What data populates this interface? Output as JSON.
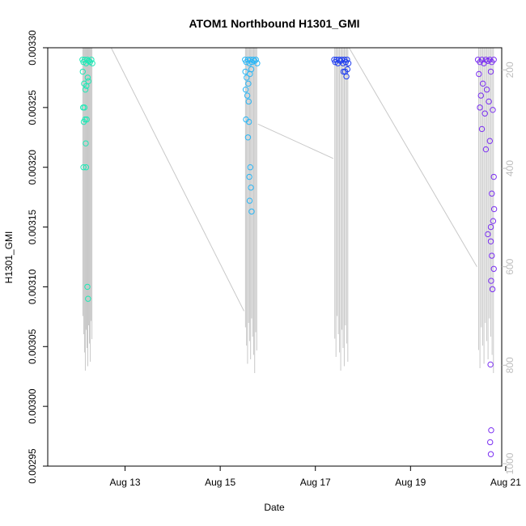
{
  "chart_data": {
    "type": "scatter",
    "title": "ATOM1 Northbound H1301_GMI",
    "xlabel": "Date",
    "ylabel": "H1301_GMI",
    "xlim": [
      "2023-08-11T09:00",
      "2023-08-20T22:00"
    ],
    "ylim": [
      0.00295,
      0.0033
    ],
    "y2lim": [
      1005,
      155
    ],
    "grid": false,
    "x_ticks": [
      {
        "value": "2023-08-13T00:00",
        "label": "Aug 13"
      },
      {
        "value": "2023-08-15T00:00",
        "label": "Aug 15"
      },
      {
        "value": "2023-08-17T00:00",
        "label": "Aug 17"
      },
      {
        "value": "2023-08-19T00:00",
        "label": "Aug 19"
      },
      {
        "value": "2023-08-21T00:00",
        "label": "Aug 21"
      }
    ],
    "y_ticks": [
      "0.00295",
      "0.00300",
      "0.00305",
      "0.00310",
      "0.00315",
      "0.00320",
      "0.00325",
      "0.00330"
    ],
    "y2_ticks": [
      "200",
      "400",
      "600",
      "800",
      "1000"
    ],
    "series": [
      {
        "color": "#1de9b6",
        "points": [
          [
            "2023-08-12T02:30",
            0.00329
          ],
          [
            "2023-08-12T03:00",
            0.003288
          ],
          [
            "2023-08-12T03:40",
            0.00329
          ],
          [
            "2023-08-12T04:20",
            0.003287
          ],
          [
            "2023-08-12T05:00",
            0.00329
          ],
          [
            "2023-08-12T05:40",
            0.003289
          ],
          [
            "2023-08-12T06:20",
            0.003288
          ],
          [
            "2023-08-12T07:00",
            0.00329
          ],
          [
            "2023-08-12T07:30",
            0.003287
          ],
          [
            "2023-08-12T02:40",
            0.00328
          ],
          [
            "2023-08-12T03:20",
            0.00327
          ],
          [
            "2023-08-12T04:00",
            0.003265
          ],
          [
            "2023-08-12T04:30",
            0.003268
          ],
          [
            "2023-08-12T05:10",
            0.003275
          ],
          [
            "2023-08-12T05:30",
            0.003272
          ],
          [
            "2023-08-12T02:50",
            0.00325
          ],
          [
            "2023-08-12T03:30",
            0.00325
          ],
          [
            "2023-08-12T03:50",
            0.00324
          ],
          [
            "2023-08-12T04:40",
            0.00324
          ],
          [
            "2023-08-12T03:10",
            0.003238
          ],
          [
            "2023-08-12T04:10",
            0.00322
          ],
          [
            "2023-08-12T03:00",
            0.0032
          ],
          [
            "2023-08-12T04:20",
            0.0032
          ],
          [
            "2023-08-12T05:00",
            0.0031
          ],
          [
            "2023-08-12T05:20",
            0.00309
          ]
        ]
      },
      {
        "color": "#29b6f6",
        "points": [
          [
            "2023-08-15T12:30",
            0.00329
          ],
          [
            "2023-08-15T13:10",
            0.003288
          ],
          [
            "2023-08-15T14:00",
            0.00329
          ],
          [
            "2023-08-15T14:40",
            0.003287
          ],
          [
            "2023-08-15T15:20",
            0.00329
          ],
          [
            "2023-08-15T16:00",
            0.003288
          ],
          [
            "2023-08-15T16:40",
            0.00329
          ],
          [
            "2023-08-15T17:20",
            0.003289
          ],
          [
            "2023-08-15T18:00",
            0.00329
          ],
          [
            "2023-08-15T18:40",
            0.003287
          ],
          [
            "2023-08-15T12:40",
            0.00328
          ],
          [
            "2023-08-15T13:20",
            0.003275
          ],
          [
            "2023-08-15T14:10",
            0.00327
          ],
          [
            "2023-08-15T15:00",
            0.003278
          ],
          [
            "2023-08-15T15:40",
            0.003282
          ],
          [
            "2023-08-15T12:50",
            0.003265
          ],
          [
            "2023-08-15T13:40",
            0.00326
          ],
          [
            "2023-08-15T14:20",
            0.003255
          ],
          [
            "2023-08-15T13:00",
            0.00324
          ],
          [
            "2023-08-15T14:30",
            0.003238
          ],
          [
            "2023-08-15T14:00",
            0.003225
          ],
          [
            "2023-08-15T15:10",
            0.0032
          ],
          [
            "2023-08-15T14:40",
            0.003192
          ],
          [
            "2023-08-15T15:30",
            0.003183
          ],
          [
            "2023-08-15T14:50",
            0.003172
          ],
          [
            "2023-08-15T15:50",
            0.003163
          ]
        ]
      },
      {
        "color": "#1f3df0",
        "points": [
          [
            "2023-08-17T09:30",
            0.00329
          ],
          [
            "2023-08-17T10:00",
            0.003288
          ],
          [
            "2023-08-17T10:40",
            0.00329
          ],
          [
            "2023-08-17T11:20",
            0.003287
          ],
          [
            "2023-08-17T12:00",
            0.00329
          ],
          [
            "2023-08-17T12:40",
            0.003289
          ],
          [
            "2023-08-17T13:20",
            0.00329
          ],
          [
            "2023-08-17T14:00",
            0.003287
          ],
          [
            "2023-08-17T14:40",
            0.00329
          ],
          [
            "2023-08-17T15:20",
            0.003288
          ],
          [
            "2023-08-17T16:00",
            0.00329
          ],
          [
            "2023-08-17T16:40",
            0.003287
          ],
          [
            "2023-08-17T14:10",
            0.00328
          ],
          [
            "2023-08-17T15:00",
            0.00328
          ],
          [
            "2023-08-17T15:40",
            0.003276
          ],
          [
            "2023-08-17T16:10",
            0.003282
          ]
        ]
      },
      {
        "color": "#7b2ff2",
        "points": [
          [
            "2023-08-20T10:00",
            0.00329
          ],
          [
            "2023-08-20T11:00",
            0.003288
          ],
          [
            "2023-08-20T12:00",
            0.00329
          ],
          [
            "2023-08-20T13:00",
            0.003287
          ],
          [
            "2023-08-20T14:00",
            0.00329
          ],
          [
            "2023-08-20T15:00",
            0.003289
          ],
          [
            "2023-08-20T16:00",
            0.00329
          ],
          [
            "2023-08-20T17:00",
            0.003288
          ],
          [
            "2023-08-20T18:00",
            0.00329
          ],
          [
            "2023-08-20T10:30",
            0.003278
          ],
          [
            "2023-08-20T12:30",
            0.00327
          ],
          [
            "2023-08-20T14:30",
            0.003265
          ],
          [
            "2023-08-20T16:30",
            0.00328
          ],
          [
            "2023-08-20T11:30",
            0.00326
          ],
          [
            "2023-08-20T15:30",
            0.003255
          ],
          [
            "2023-08-20T11:00",
            0.00325
          ],
          [
            "2023-08-20T13:30",
            0.003245
          ],
          [
            "2023-08-20T17:30",
            0.003248
          ],
          [
            "2023-08-20T12:00",
            0.003232
          ],
          [
            "2023-08-20T16:00",
            0.003222
          ],
          [
            "2023-08-20T14:00",
            0.003215
          ],
          [
            "2023-08-20T18:00",
            0.003192
          ],
          [
            "2023-08-20T17:00",
            0.003178
          ],
          [
            "2023-08-20T18:10",
            0.003165
          ],
          [
            "2023-08-20T17:40",
            0.003155
          ],
          [
            "2023-08-20T16:30",
            0.00315
          ],
          [
            "2023-08-20T15:00",
            0.003144
          ],
          [
            "2023-08-20T16:30",
            0.003138
          ],
          [
            "2023-08-20T17:00",
            0.003126
          ],
          [
            "2023-08-20T18:00",
            0.003115
          ],
          [
            "2023-08-20T16:40",
            0.003105
          ],
          [
            "2023-08-20T17:20",
            0.003098
          ],
          [
            "2023-08-20T16:20",
            0.003035
          ],
          [
            "2023-08-20T16:40",
            0.00298
          ],
          [
            "2023-08-20T16:10",
            0.00297
          ],
          [
            "2023-08-20T16:30",
            0.00296
          ]
        ]
      }
    ]
  }
}
